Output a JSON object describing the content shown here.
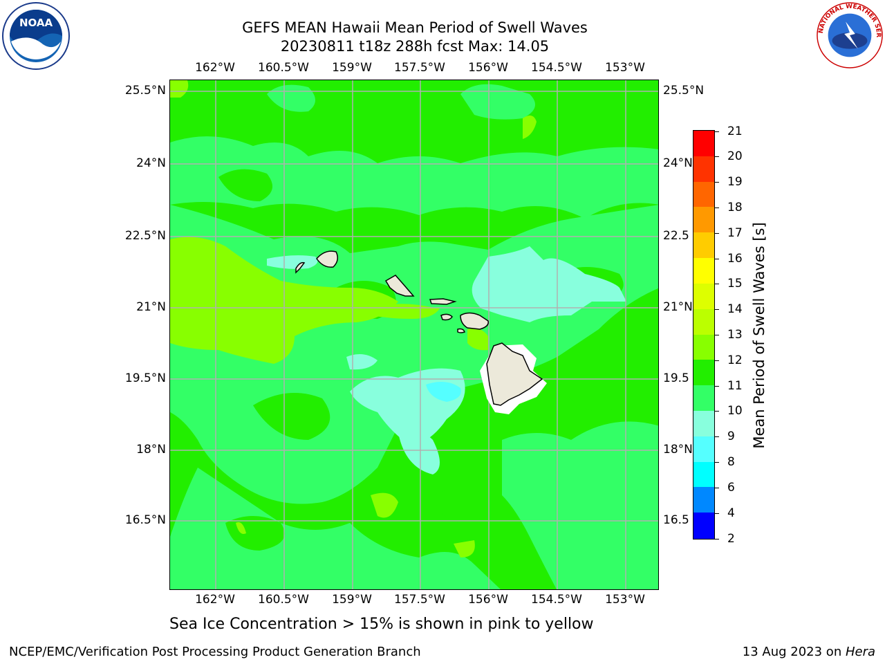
{
  "title": {
    "line1": "GEFS MEAN Hawaii Mean Period of Swell Waves",
    "line2": "20230811 t18z 288h fcst   Max: 14.05"
  },
  "axes": {
    "lon_labels": [
      "162°W",
      "160.5°W",
      "159°W",
      "157.5°W",
      "156°W",
      "154.5°W",
      "153°W"
    ],
    "lat_labels_left": [
      "25.5°N",
      "24°N",
      "22.5°N",
      "21°N",
      "19.5°N",
      "18°N",
      "16.5°N"
    ],
    "lat_labels_right": [
      "25.5°N",
      "24°N",
      "22.5",
      "21°N",
      "19.5",
      "18°N",
      "16.5"
    ]
  },
  "colorbar": {
    "title": "Mean Period of Swell Waves [s]",
    "ticks": [
      "21",
      "20",
      "19",
      "18",
      "17",
      "16",
      "15",
      "14",
      "13",
      "12",
      "11",
      "10",
      "9",
      "8",
      "6",
      "4",
      "2"
    ],
    "colors": [
      "#ff0000",
      "#ff3300",
      "#ff6600",
      "#ff9900",
      "#ffcc00",
      "#ffff00",
      "#ddff00",
      "#bbff00",
      "#88ff00",
      "#22ee00",
      "#33ff66",
      "#88ffdd",
      "#55ffff",
      "#00ffff",
      "#0088ff",
      "#0000ff"
    ]
  },
  "caption": "Sea Ice Concentration > 15% is shown in pink to yellow",
  "footer": {
    "left": "NCEP/EMC/Verification Post Processing Product Generation Branch",
    "right_date": "13 Aug 2023 on ",
    "right_host": "Hera"
  },
  "logos": {
    "noaa_text": "NOAA",
    "nws_text": "NATIONAL WEATHER SERVICE"
  }
}
